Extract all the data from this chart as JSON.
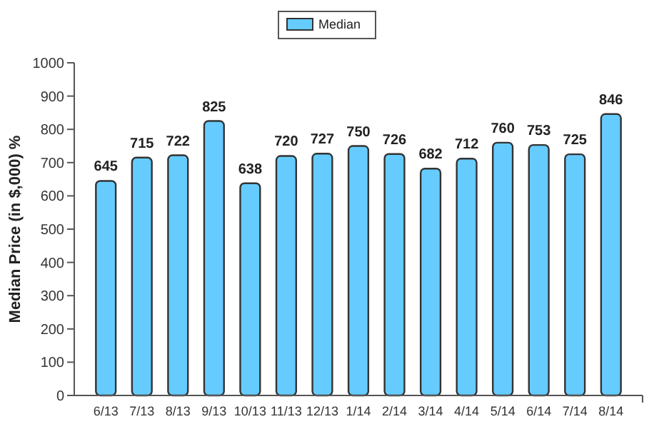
{
  "chart_data": {
    "type": "bar",
    "ylabel": "Median Price (in $,000) %",
    "categories": [
      "6/13",
      "7/13",
      "8/13",
      "9/13",
      "10/13",
      "11/13",
      "12/13",
      "1/14",
      "2/14",
      "3/14",
      "4/14",
      "5/14",
      "6/14",
      "7/14",
      "8/14"
    ],
    "series": [
      {
        "name": "Median",
        "color": "#66ccff",
        "values": [
          645,
          715,
          722,
          825,
          638,
          720,
          727,
          750,
          726,
          682,
          712,
          760,
          753,
          725,
          846
        ]
      }
    ],
    "ylim": [
      0,
      1000
    ],
    "yticks": [
      0,
      100,
      200,
      300,
      400,
      500,
      600,
      700,
      800,
      900,
      1000
    ],
    "data_labels": true,
    "legend": "top",
    "grid": false
  }
}
